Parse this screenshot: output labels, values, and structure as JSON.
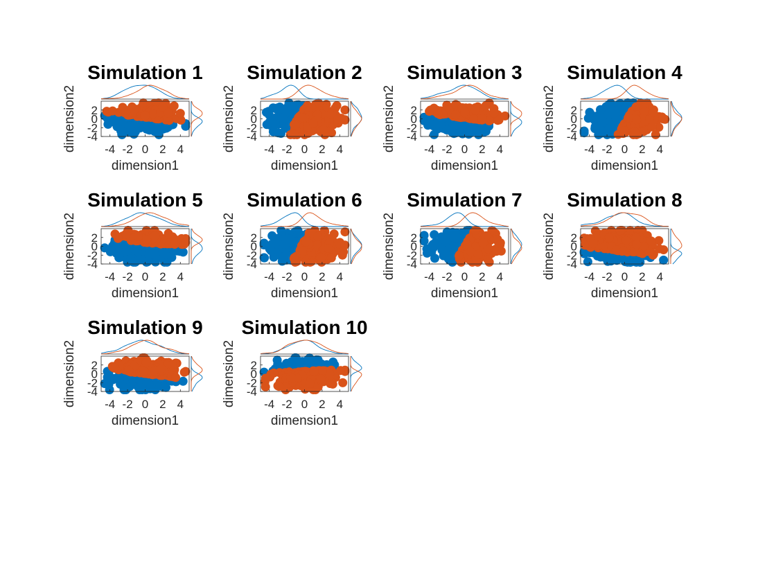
{
  "colors": {
    "cluster1": "#0072BD",
    "cluster2": "#D95319",
    "axis": "#262626"
  },
  "chart_data": {
    "type": "scatter",
    "layout": "grid 3 rows x 4 columns, 10 panels, each scatter with marginal density curves on top and right",
    "xlabel": "dimension1",
    "ylabel": "dimension2",
    "xlim": [
      -5,
      5
    ],
    "ylim": [
      -4,
      4
    ],
    "xticks": [
      "-4",
      "-2",
      "0",
      "2",
      "4"
    ],
    "yticks": [
      "2",
      "0",
      "-2",
      "-4"
    ],
    "marker": "filled circle",
    "panels": [
      {
        "title": "Simulation 1",
        "pattern": "top-vs-bottom",
        "split": 0.3
      },
      {
        "title": "Simulation 2",
        "pattern": "left-vs-right",
        "split": -0.8
      },
      {
        "title": "Simulation 3",
        "pattern": "top-vs-bottom",
        "split": 0.2
      },
      {
        "title": "Simulation 4",
        "pattern": "left-vs-right",
        "split": 0.3
      },
      {
        "title": "Simulation 5",
        "pattern": "top-vs-bottom",
        "split": 0.9
      },
      {
        "title": "Simulation 6",
        "pattern": "left-vs-right",
        "split": -0.4
      },
      {
        "title": "Simulation 7",
        "pattern": "left-vs-right",
        "split": 0.0
      },
      {
        "title": "Simulation 8",
        "pattern": "top-vs-bottom",
        "split": -1.2
      },
      {
        "title": "Simulation 9",
        "pattern": "top-vs-bottom",
        "split": 0.0
      },
      {
        "title": "Simulation 10",
        "pattern": "bottom-vs-top",
        "split": 0.6
      }
    ]
  }
}
